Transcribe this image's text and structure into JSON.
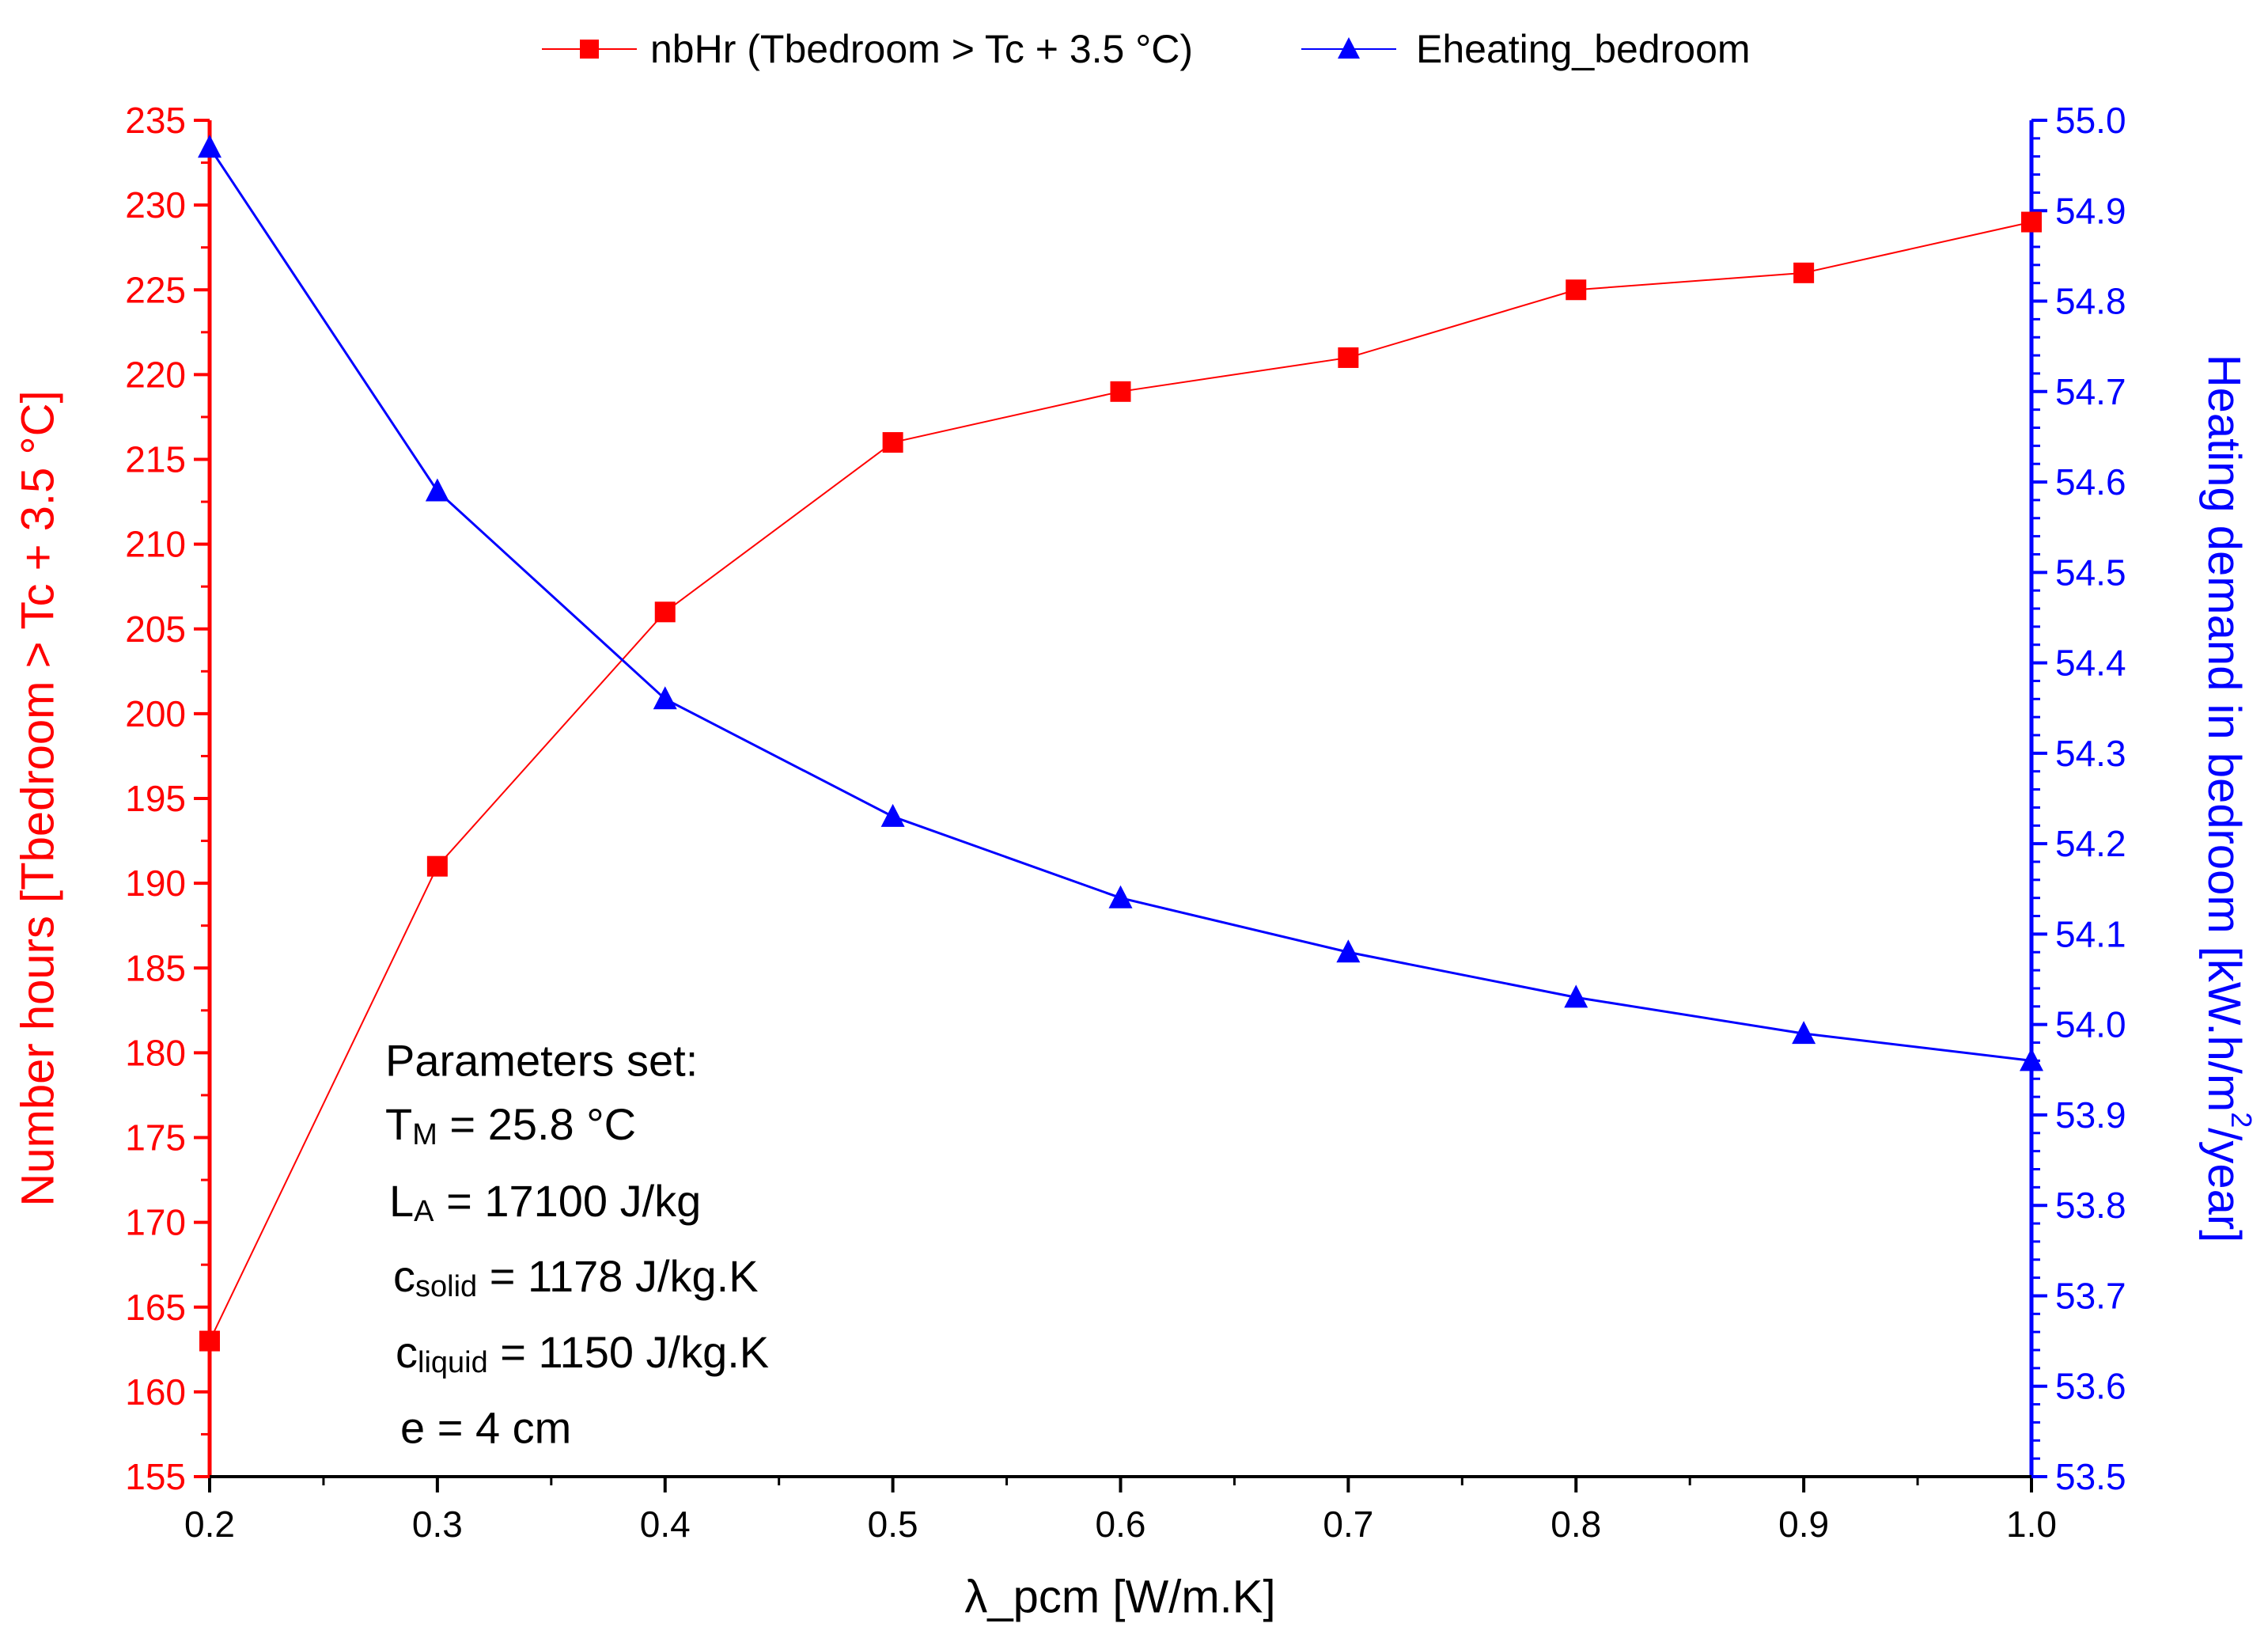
{
  "chart_data": {
    "type": "line",
    "x": [
      0.2,
      0.3,
      0.4,
      0.5,
      0.6,
      0.7,
      0.8,
      0.9,
      1.0
    ],
    "xlabel": "λ_pcm [W/m.K]",
    "xlim": [
      0.2,
      1.0
    ],
    "xticks": [
      "0.2",
      "0.3",
      "0.4",
      "0.5",
      "0.6",
      "0.7",
      "0.8",
      "0.9",
      "1.0"
    ],
    "ylabel_left": "Number hours [Tbedroom > Tc + 3.5 °C]",
    "ylim_left": [
      155,
      235
    ],
    "yticks_left": [
      "155",
      "160",
      "165",
      "170",
      "175",
      "180",
      "185",
      "190",
      "195",
      "200",
      "205",
      "210",
      "215",
      "220",
      "225",
      "230",
      "235"
    ],
    "ylabel_right_main": "Heating demand in bedroom [kW.h/m",
    "ylabel_right_sup": "2",
    "ylabel_right_tail": "/year]",
    "ylim_right": [
      53.5,
      55.0
    ],
    "yticks_right": [
      "53.5",
      "53.6",
      "53.7",
      "53.8",
      "53.9",
      "54.0",
      "54.1",
      "54.2",
      "54.3",
      "54.4",
      "54.5",
      "54.6",
      "54.7",
      "54.8",
      "54.9",
      "55.0"
    ],
    "grid": false,
    "legend_position": "top-center",
    "series": [
      {
        "name": "nbHr (Tbedroom > Tc + 3.5 °C)",
        "axis": "left",
        "marker": "square",
        "color": "#ff0000",
        "values": [
          163,
          191,
          206,
          216,
          219,
          221,
          225,
          226,
          229
        ]
      },
      {
        "name": "Eheating_bedroom",
        "axis": "right",
        "marker": "triangle",
        "color": "#0000ff",
        "values": [
          54.97,
          54.59,
          54.36,
          54.23,
          54.14,
          54.08,
          54.03,
          53.99,
          53.96
        ]
      }
    ],
    "annotation": {
      "title": "Parameters set:",
      "lines": [
        {
          "main": "T",
          "sub": "M",
          "rest": " = 25.8 °C"
        },
        {
          "main": "L",
          "sub": "A",
          "rest": " = 17100 J/kg"
        },
        {
          "main": "c",
          "sub": "solid",
          "rest": " = 1178 J/kg.K"
        },
        {
          "main": "c",
          "sub": "liquid",
          "rest": " = 1150 J/kg.K"
        },
        {
          "main": "e = 4 cm",
          "sub": "",
          "rest": ""
        }
      ]
    }
  }
}
